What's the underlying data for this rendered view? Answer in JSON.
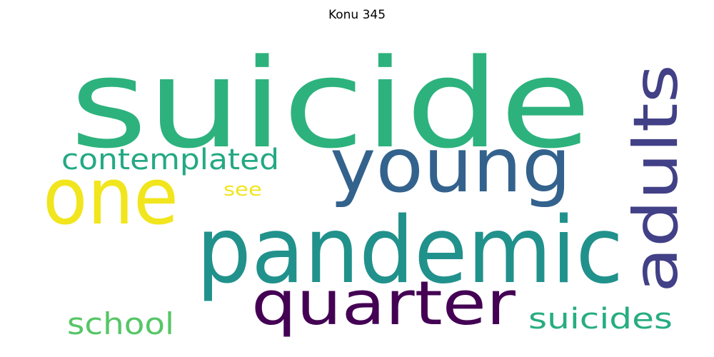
{
  "title": "Konu 345",
  "words": [
    {
      "text": "suicide",
      "color": "#2db27d"
    },
    {
      "text": "young",
      "color": "#33628d"
    },
    {
      "text": "adults",
      "color": "#424086"
    },
    {
      "text": "one",
      "color": "#f1e51d"
    },
    {
      "text": "pandemic",
      "color": "#21918c"
    },
    {
      "text": "quarter",
      "color": "#440154"
    },
    {
      "text": "contemplated",
      "color": "#23a983"
    },
    {
      "text": "see",
      "color": "#f1e51d"
    },
    {
      "text": "school",
      "color": "#56c667"
    },
    {
      "text": "suicides",
      "color": "#27ad81"
    }
  ]
}
